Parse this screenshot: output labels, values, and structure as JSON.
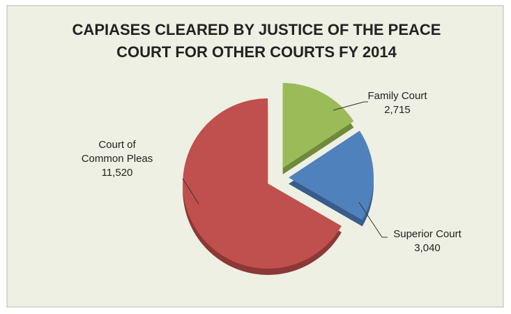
{
  "chart_data": {
    "type": "pie",
    "title": [
      "CAPIASES CLEARED BY JUSTICE OF THE PEACE",
      "COURT FOR OTHER COURTS FY 2014"
    ],
    "categories": [
      "Family Court",
      "Superior Court",
      "Court of Common Pleas"
    ],
    "values": [
      2715,
      3040,
      11520
    ],
    "value_labels": [
      "2,715",
      "3,040",
      "11,520"
    ],
    "colors": [
      "#9bbb59",
      "#4f81bd",
      "#c0504d"
    ],
    "side_colors": [
      "#6f8a3a",
      "#385d8a",
      "#8c3836"
    ]
  }
}
